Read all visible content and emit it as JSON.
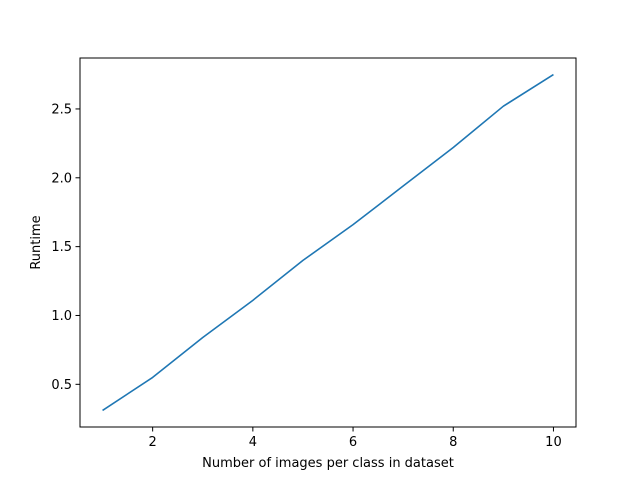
{
  "chart_data": {
    "type": "line",
    "title": "",
    "xlabel": "Number of images per class in dataset",
    "ylabel": "Runtime",
    "xlim": [
      0.55,
      10.45
    ],
    "ylim": [
      0.19,
      2.87
    ],
    "x_ticks": [
      2,
      4,
      6,
      8,
      10
    ],
    "y_ticks": [
      0.5,
      1.0,
      1.5,
      2.0,
      2.5
    ],
    "x_tick_labels": [
      "2",
      "4",
      "6",
      "8",
      "10"
    ],
    "y_tick_labels": [
      "0.5",
      "1.0",
      "1.5",
      "2.0",
      "2.5"
    ],
    "grid": false,
    "legend": "none",
    "series": [
      {
        "color": "#1f77b4",
        "x": [
          1,
          2,
          3,
          4,
          5,
          6,
          7,
          8,
          9,
          10
        ],
        "y": [
          0.31,
          0.55,
          0.84,
          1.11,
          1.4,
          1.66,
          1.94,
          2.22,
          2.52,
          2.75
        ]
      }
    ]
  }
}
